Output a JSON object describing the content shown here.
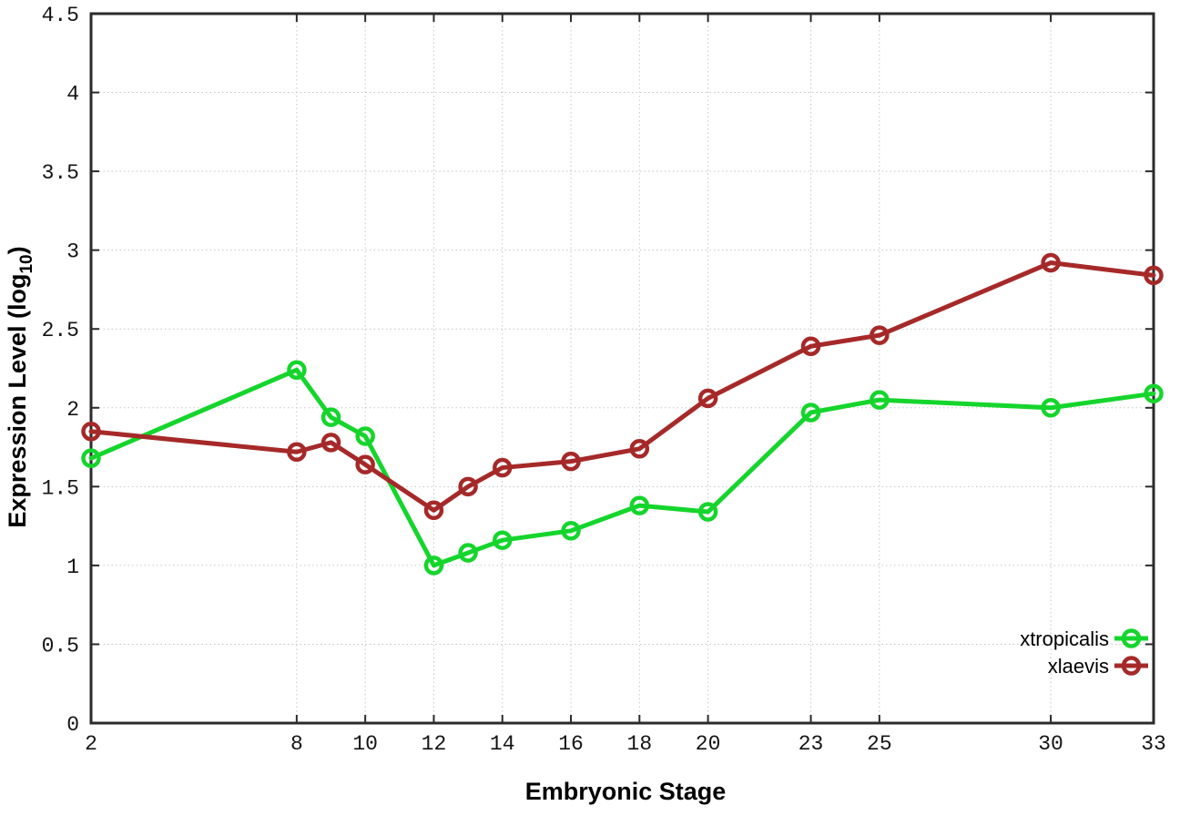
{
  "chart_data": {
    "type": "line",
    "title": "",
    "xlabel": "Embryonic Stage",
    "ylabel": "Expression Level (log10)",
    "ylabel_parts": {
      "pre": "Expression Level (log",
      "sub": "10",
      "post": ")"
    },
    "xlim": [
      2,
      33
    ],
    "ylim": [
      0,
      4.5
    ],
    "xticks": [
      2,
      8,
      10,
      12,
      14,
      16,
      18,
      20,
      23,
      25,
      30,
      33
    ],
    "yticks": [
      0,
      0.5,
      1,
      1.5,
      2,
      2.5,
      3,
      3.5,
      4,
      4.5
    ],
    "ytick_labels": [
      "0",
      "0.5",
      "1",
      "1.5",
      "2",
      "2.5",
      "3",
      "3.5",
      "4",
      "4.5"
    ],
    "grid": true,
    "legend_position": "bottom-right",
    "marker": "open-circle",
    "x": [
      2,
      8,
      9,
      10,
      12,
      13,
      14,
      16,
      18,
      20,
      23,
      25,
      30,
      33
    ],
    "series": [
      {
        "name": "xtropicalis",
        "color": "#15d52c",
        "values": [
          1.68,
          2.24,
          1.94,
          1.82,
          1.0,
          1.08,
          1.16,
          1.22,
          1.38,
          1.34,
          1.97,
          2.05,
          2.0,
          2.09
        ]
      },
      {
        "name": "xlaevis",
        "color": "#a62929",
        "values": [
          1.85,
          1.72,
          1.78,
          1.64,
          1.35,
          1.5,
          1.62,
          1.66,
          1.74,
          2.06,
          2.39,
          2.46,
          2.92,
          2.84
        ]
      }
    ]
  },
  "colors": {
    "background": "#ffffff",
    "plot_border": "#2b2b2b",
    "grid": "#c6c6c6",
    "tick_text": "#141414"
  }
}
